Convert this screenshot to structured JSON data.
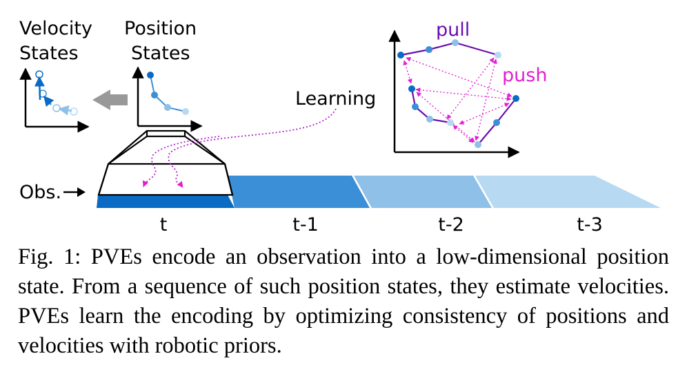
{
  "labels": {
    "velocity": [
      "Velocity",
      "States"
    ],
    "position": [
      "Position",
      "States"
    ],
    "learning": "Learning",
    "pull": "pull",
    "push": "push",
    "obs": "Obs."
  },
  "timeline": [
    "t",
    "t-1",
    "t-2",
    "t-3"
  ],
  "colors": {
    "dark_blue": "#0a6bc4",
    "mid_blue": "#3a8fd6",
    "light_blue": "#8ec0e8",
    "lighter_blue": "#b8d9f2",
    "pull_purple": "#6a0dad",
    "push_magenta": "#e020d0",
    "arrow_gray": "#999999"
  },
  "caption": "Fig. 1: PVEs encode an observation into a low-dimensional position state. From a sequence of such position states, they estimate velocities. PVEs learn the encoding by optimizing consistency of positions and velocities with robotic priors."
}
